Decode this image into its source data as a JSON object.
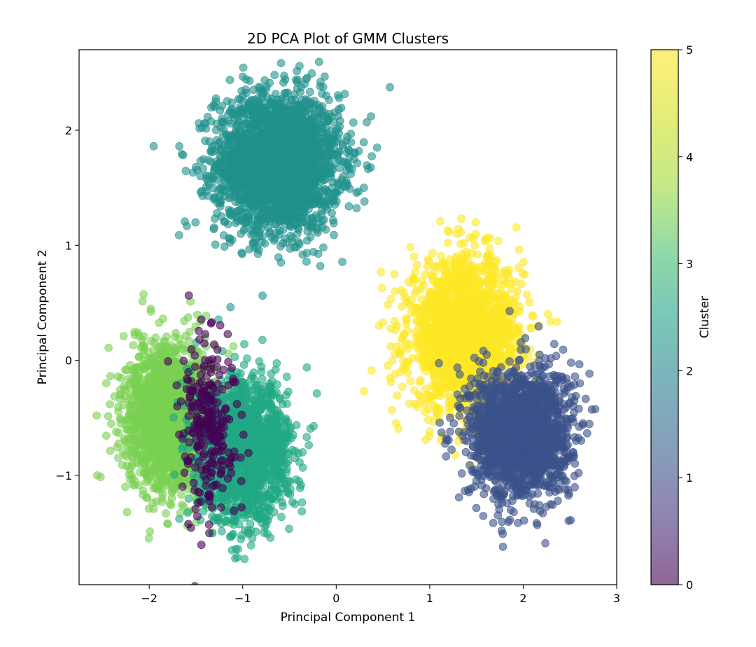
{
  "chart_data": {
    "type": "scatter",
    "title": "2D PCA Plot of GMM Clusters",
    "xlabel": "Principal Component 1",
    "ylabel": "Principal Component 2",
    "xlim": [
      -2.75,
      3.0
    ],
    "ylim": [
      -1.95,
      2.7
    ],
    "xticks": [
      -2,
      -1,
      0,
      1,
      2,
      3
    ],
    "xtick_labels": [
      "−2",
      "−1",
      "0",
      "1",
      "2",
      "3"
    ],
    "yticks": [
      -1,
      0,
      1,
      2
    ],
    "ytick_labels": [
      "−1",
      "0",
      "1",
      "2"
    ],
    "grid": false,
    "point_alpha": 0.6,
    "colorbar": {
      "label": "Cluster",
      "range": [
        0,
        5
      ],
      "ticks": [
        0,
        1,
        2,
        3,
        4,
        5
      ],
      "tick_labels": [
        "0",
        "1",
        "2",
        "3",
        "4",
        "5"
      ],
      "colormap": "viridis"
    },
    "series": [
      {
        "name": "Cluster 2",
        "cluster": 2,
        "color": "#21918c",
        "center": [
          -0.62,
          1.72
        ],
        "spread": [
          0.33,
          0.3
        ],
        "count": 2600
      },
      {
        "name": "Cluster 5",
        "cluster": 5,
        "color": "#fde725",
        "center": [
          1.38,
          0.22
        ],
        "spread": [
          0.3,
          0.33
        ],
        "count": 1800
      },
      {
        "name": "Cluster 1",
        "cluster": 1,
        "color": "#3b528b",
        "center": [
          1.97,
          -0.63
        ],
        "spread": [
          0.27,
          0.28
        ],
        "count": 1800
      },
      {
        "name": "Cluster 4",
        "cluster": 4,
        "color": "#7ad151",
        "center": [
          -1.78,
          -0.5
        ],
        "spread": [
          0.24,
          0.32
        ],
        "count": 1700
      },
      {
        "name": "Cluster 3",
        "cluster": 3,
        "color": "#22a884",
        "center": [
          -0.98,
          -0.8
        ],
        "spread": [
          0.24,
          0.3
        ],
        "count": 1700
      },
      {
        "name": "Cluster 0",
        "cluster": 0,
        "color": "#440154",
        "center": [
          -1.36,
          -0.55
        ],
        "spread": [
          0.14,
          0.38
        ],
        "count": 260
      }
    ]
  }
}
